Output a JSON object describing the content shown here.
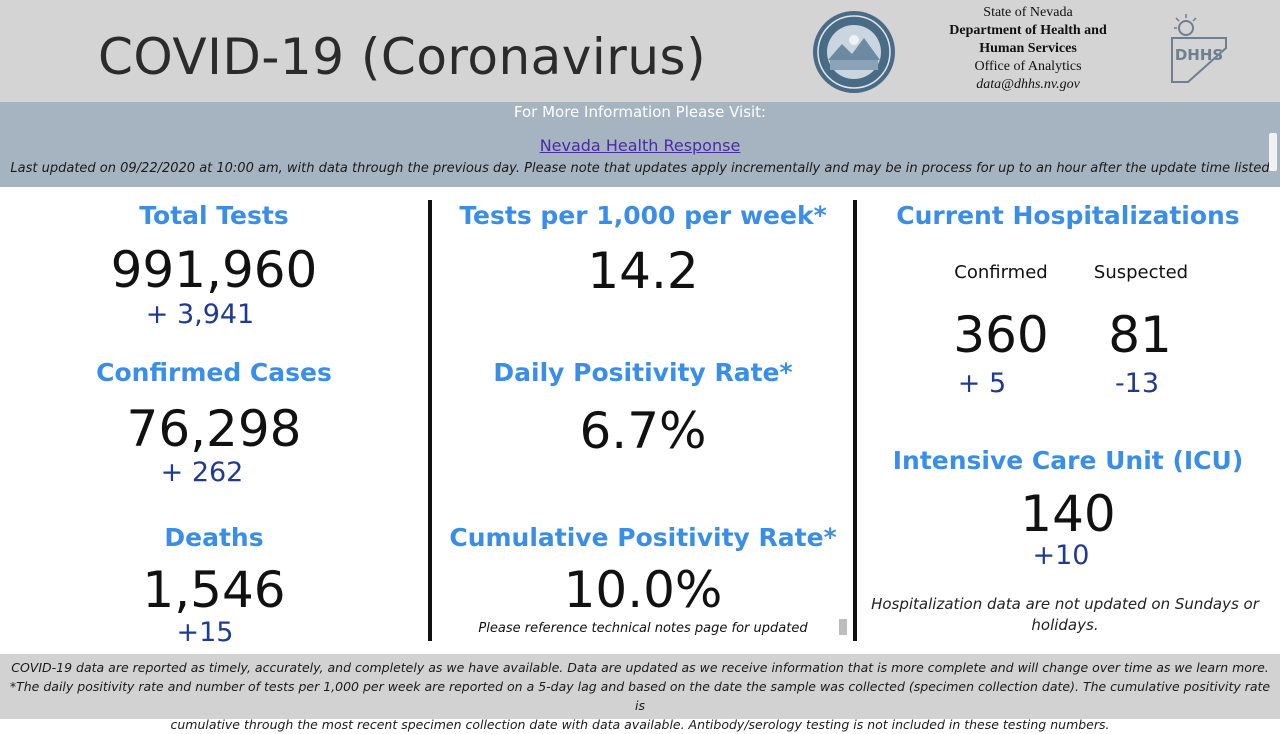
{
  "header": {
    "title": "COVID-19 (Coronavirus)",
    "agency_state": "State of Nevada",
    "agency_dept_1": "Department of Health and",
    "agency_dept_2": "Human Services",
    "agency_office": "Office of Analytics",
    "agency_email": "data@dhhs.nv.gov",
    "logo_text": "DHHS"
  },
  "info": {
    "more_info": "For More Information Please Visit:",
    "link_label": "Nevada Health Response",
    "last_updated": "Last updated on 09/22/2020 at 10:00 am, with data through the previous day.  Please note that updates apply incrementally and may be in process for up to an hour after the update time listed"
  },
  "col1": {
    "total_tests_label": "Total Tests",
    "total_tests_value": "991,960",
    "total_tests_delta": "+ 3,941",
    "confirmed_label": "Confirmed Cases",
    "confirmed_value": "76,298",
    "confirmed_delta": "+ 262",
    "deaths_label": "Deaths",
    "deaths_value": "1,546",
    "deaths_delta": "+15"
  },
  "col2": {
    "tests_per_label": "Tests per 1,000 per week*",
    "tests_per_value": "14.2",
    "daily_pos_label": "Daily Positivity Rate*",
    "daily_pos_value": "6.7%",
    "cum_pos_label": "Cumulative Positivity Rate*",
    "cum_pos_value": "10.0%",
    "tech_note": "Please reference technical notes page for updated"
  },
  "col3": {
    "hosp_label": "Current Hospitalizations",
    "confirmed_sub": "Confirmed",
    "suspected_sub": "Suspected",
    "confirmed_value": "360",
    "suspected_value": "81",
    "confirmed_delta": "+ 5",
    "suspected_delta": "-13",
    "icu_label": "Intensive Care Unit (ICU)",
    "icu_value": "140",
    "icu_delta": "+10",
    "hosp_note": "Hospitalization data are not updated on Sundays or holidays."
  },
  "footer": {
    "line1": "COVID-19 data are reported as timely, accurately, and completely as we have available.  Data are updated as we receive information that is more complete and will change over time as we learn more.",
    "line2": "*The daily positivity rate and number of tests per 1,000 per week are reported on a 5-day lag and based on the date the sample was collected (specimen collection date).  The cumulative positivity rate is",
    "line3": "cumulative through the most recent specimen collection date with data available.  Antibody/serology testing is not included in these testing numbers."
  },
  "colors": {
    "heading_blue": "#3a8ee8",
    "delta_navy": "#1f3a93",
    "header_gray": "#d4d4d4",
    "band_blue_gray": "#a6b4c1"
  }
}
